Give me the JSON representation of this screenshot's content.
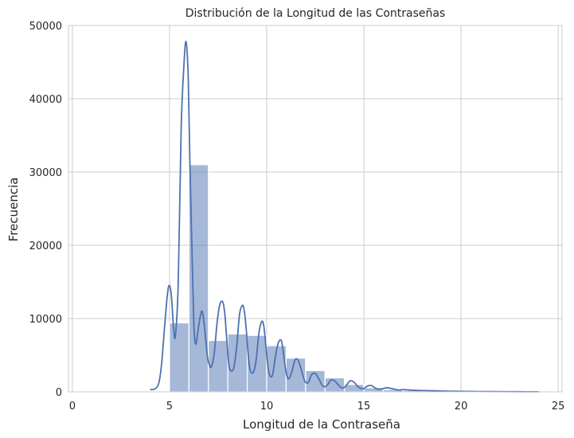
{
  "chart_data": {
    "type": "bar",
    "title": "Distribución de la Longitud de las Contraseñas",
    "xlabel": "Longitud de la Contraseña",
    "ylabel": "Frecuencia",
    "xlim": [
      -0.2,
      25.2
    ],
    "ylim": [
      0,
      50000
    ],
    "xticks": [
      0,
      5,
      10,
      15,
      20,
      25
    ],
    "yticks": [
      0,
      10000,
      20000,
      30000,
      40000,
      50000
    ],
    "grid": true,
    "bar_color": "#4c72b0",
    "line_color": "#4c72b0",
    "series": [
      {
        "kind": "histogram",
        "bins": [
          {
            "x0": 5,
            "x1": 6,
            "y": 9400
          },
          {
            "x0": 6,
            "x1": 7,
            "y": 31000
          },
          {
            "x0": 7,
            "x1": 8,
            "y": 7000
          },
          {
            "x0": 8,
            "x1": 9,
            "y": 7900
          },
          {
            "x0": 9,
            "x1": 10,
            "y": 7700
          },
          {
            "x0": 10,
            "x1": 11,
            "y": 6300
          },
          {
            "x0": 11,
            "x1": 12,
            "y": 4600
          },
          {
            "x0": 12,
            "x1": 13,
            "y": 2900
          },
          {
            "x0": 13,
            "x1": 14,
            "y": 1900
          },
          {
            "x0": 14,
            "x1": 15,
            "y": 1000
          },
          {
            "x0": 15,
            "x1": 16,
            "y": 550
          },
          {
            "x0": 16,
            "x1": 17,
            "y": 300
          },
          {
            "x0": 17,
            "x1": 18,
            "y": 180
          },
          {
            "x0": 18,
            "x1": 19,
            "y": 110
          },
          {
            "x0": 19,
            "x1": 20,
            "y": 70
          },
          {
            "x0": 20,
            "x1": 21,
            "y": 50
          },
          {
            "x0": 21,
            "x1": 22,
            "y": 30
          },
          {
            "x0": 22,
            "x1": 23,
            "y": 20
          },
          {
            "x0": 23,
            "x1": 24,
            "y": 15
          }
        ]
      },
      {
        "kind": "kde",
        "x": [
          4.0,
          4.25,
          4.45,
          4.6,
          4.75,
          4.9,
          5.0,
          5.1,
          5.2,
          5.3,
          5.45,
          5.6,
          5.75,
          5.85,
          5.95,
          6.0,
          6.05,
          6.15,
          6.25,
          6.35,
          6.5,
          6.65,
          6.75,
          6.85,
          6.95,
          7.05,
          7.15,
          7.3,
          7.45,
          7.6,
          7.75,
          7.85,
          7.95,
          8.05,
          8.15,
          8.3,
          8.45,
          8.6,
          8.75,
          8.85,
          8.95,
          9.05,
          9.15,
          9.3,
          9.45,
          9.6,
          9.75,
          9.85,
          9.95,
          10.05,
          10.15,
          10.3,
          10.45,
          10.6,
          10.75,
          10.85,
          10.95,
          11.05,
          11.15,
          11.3,
          11.45,
          11.6,
          11.75,
          11.9,
          12.0,
          12.15,
          12.3,
          12.5,
          12.7,
          12.85,
          13.0,
          13.15,
          13.3,
          13.5,
          13.7,
          13.85,
          14.0,
          14.15,
          14.3,
          14.5,
          14.7,
          14.9,
          15.0,
          15.2,
          15.4,
          15.6,
          15.8,
          16.0,
          16.2,
          16.5,
          16.8,
          17.0,
          17.3,
          17.6,
          18.0,
          18.5,
          19.0,
          19.5,
          20.0,
          21.0,
          22.0,
          23.0,
          24.0
        ],
        "y": [
          300,
          400,
          1200,
          4000,
          9000,
          13500,
          14500,
          13000,
          9000,
          7600,
          15000,
          36000,
          45000,
          47800,
          44000,
          38000,
          31000,
          20000,
          9500,
          6500,
          9000,
          11000,
          10000,
          7500,
          4800,
          3700,
          3400,
          5200,
          9500,
          12000,
          12200,
          10500,
          7000,
          3800,
          2900,
          3200,
          6000,
          10500,
          11800,
          11000,
          8500,
          5000,
          3000,
          2600,
          4200,
          8000,
          9600,
          9000,
          6500,
          3800,
          2300,
          2300,
          4800,
          6700,
          7000,
          5500,
          3500,
          2100,
          1800,
          2800,
          4300,
          4400,
          3300,
          1900,
          1300,
          1300,
          2300,
          2500,
          1700,
          900,
          700,
          1000,
          1600,
          1500,
          900,
          550,
          600,
          1050,
          1500,
          1300,
          700,
          400,
          450,
          800,
          850,
          500,
          350,
          450,
          550,
          400,
          250,
          300,
          250,
          200,
          180,
          150,
          110,
          80,
          60,
          40,
          30,
          20,
          10
        ]
      }
    ]
  }
}
